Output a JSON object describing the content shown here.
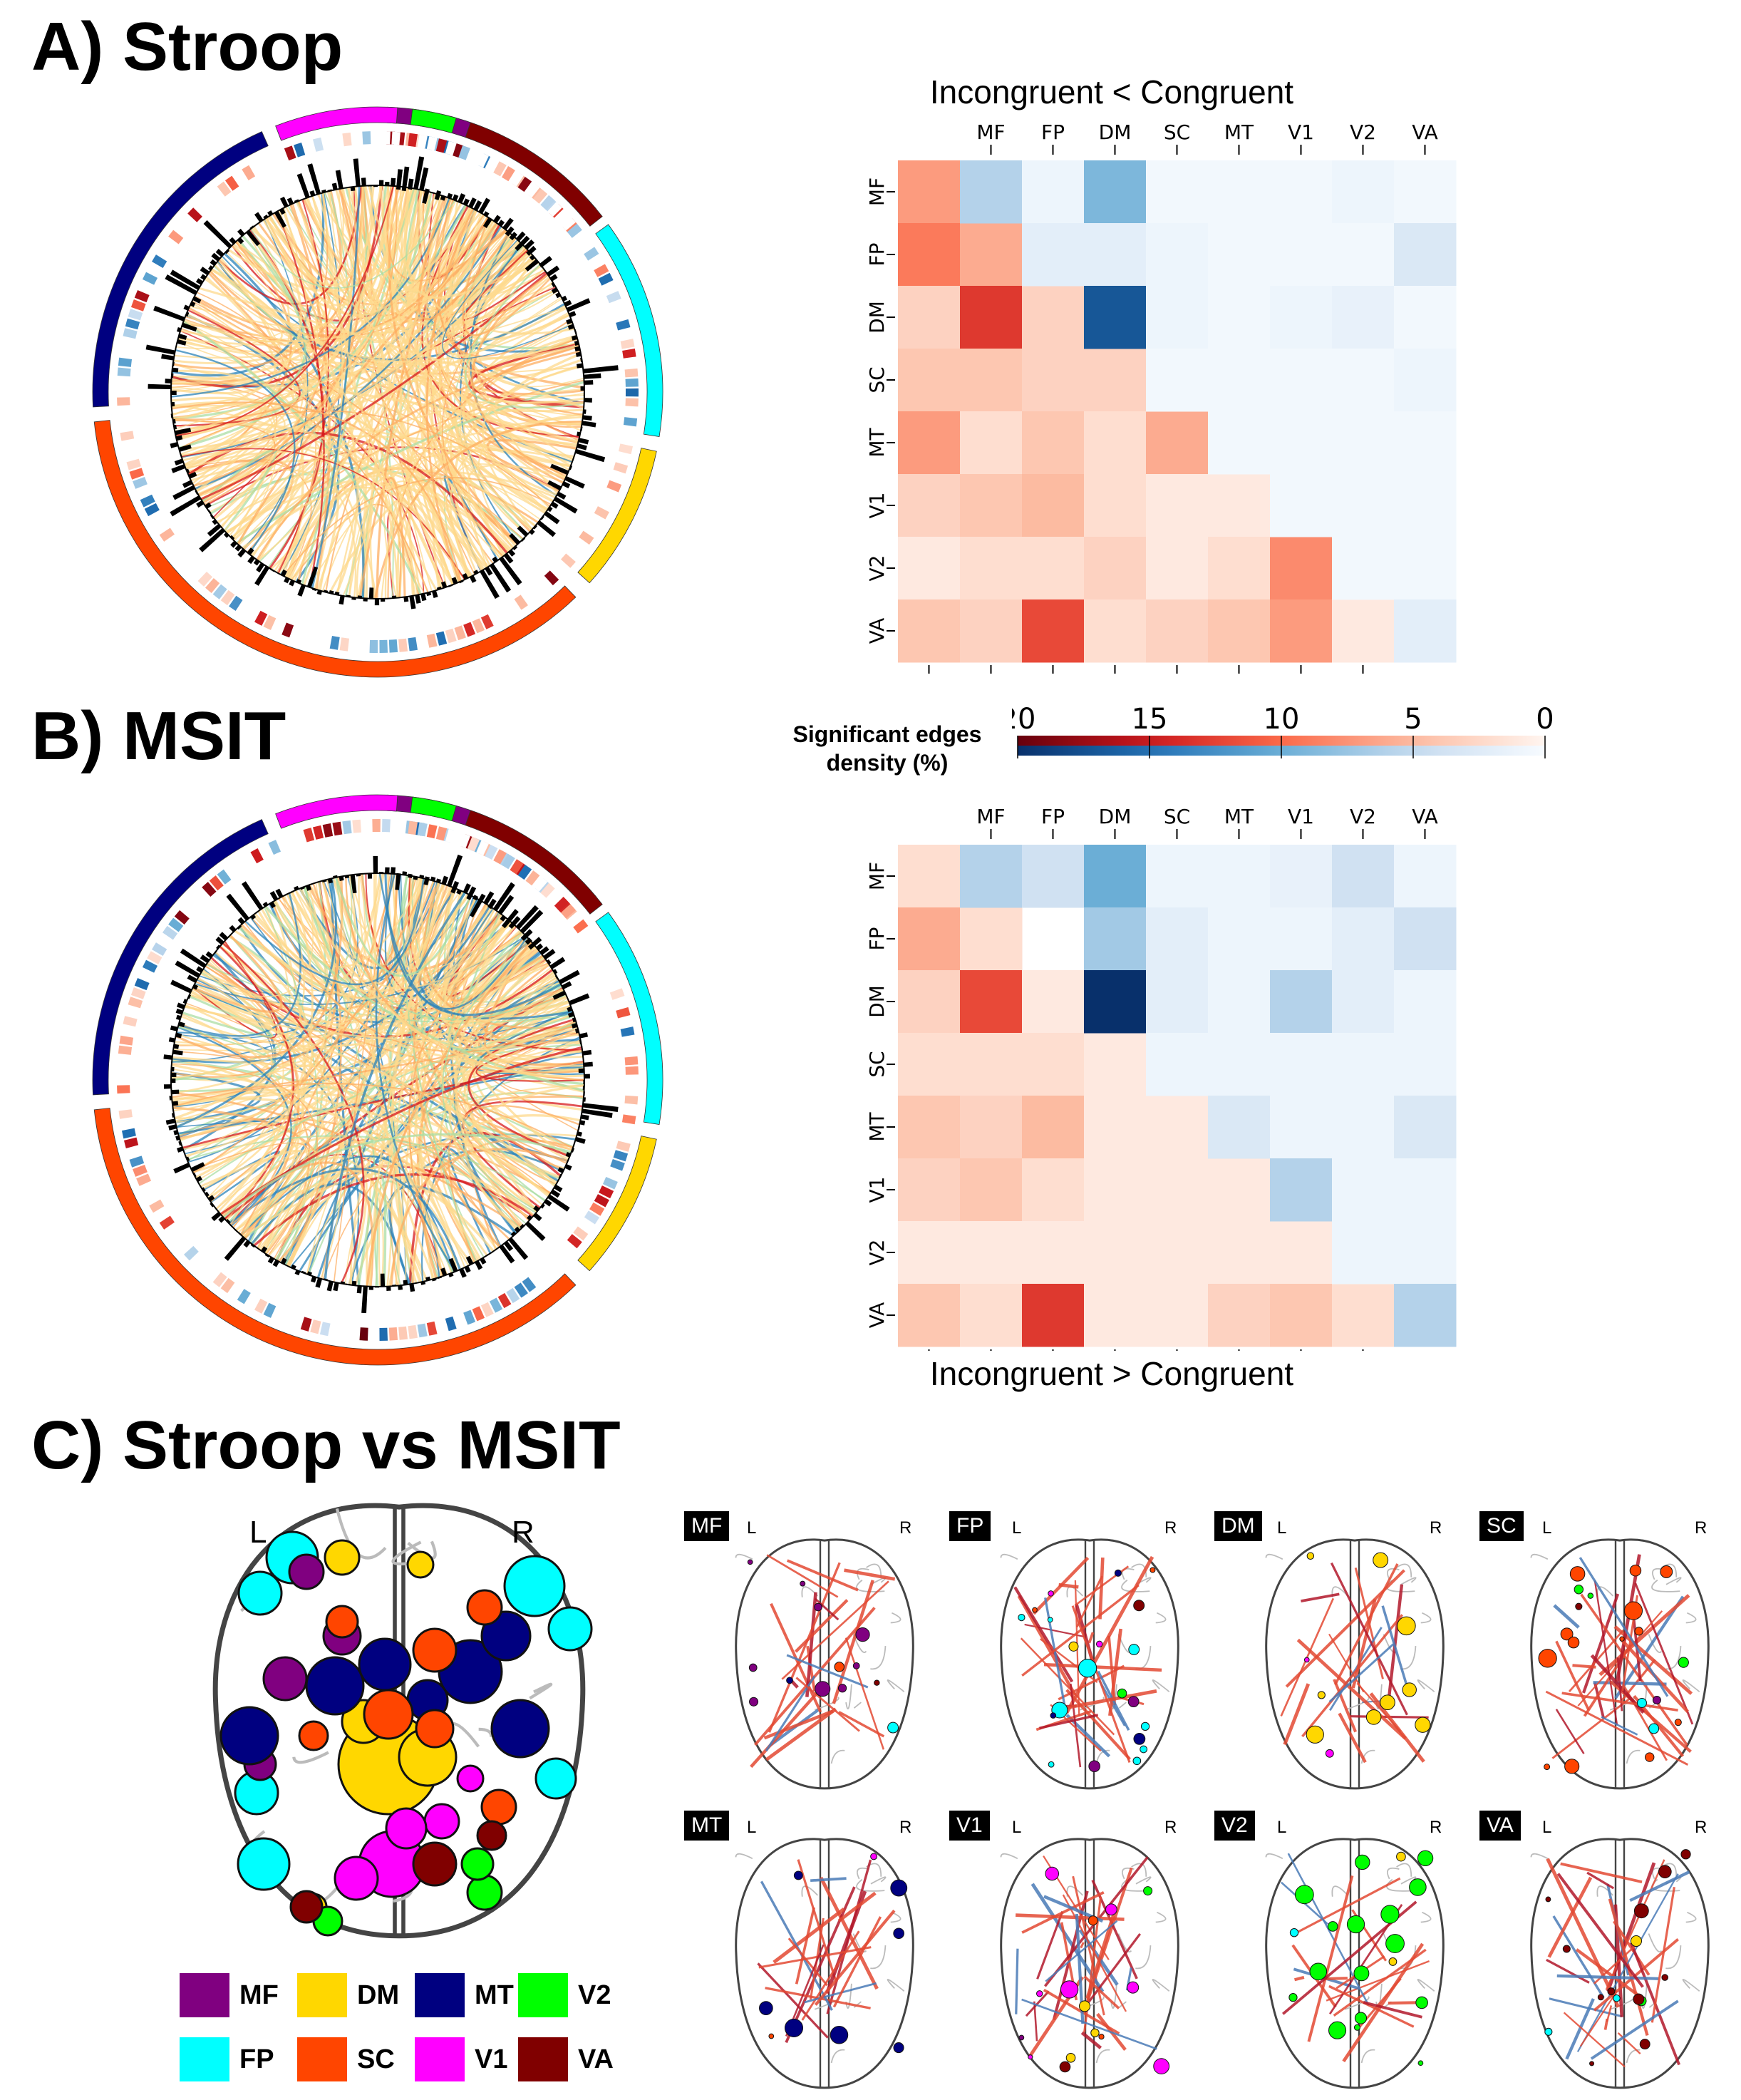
{
  "panels": {
    "a": "A) Stroop",
    "b": "B) MSIT",
    "c": "C) Stroop vs MSIT"
  },
  "heatmap_titles": {
    "top": "Incongruent < Congruent",
    "bottom": "Incongruent > Congruent"
  },
  "colorbar": {
    "label_line1": "Significant edges",
    "label_line2": "density (%)",
    "ticks": [
      "20",
      "15",
      "10",
      "5",
      "0"
    ]
  },
  "networks": [
    "MF",
    "FP",
    "DM",
    "SC",
    "MT",
    "V1",
    "V2",
    "VA"
  ],
  "network_colors": {
    "MF": "#800080",
    "FP": "#00ffff",
    "DM": "#ffd700",
    "SC": "#ff4500",
    "MT": "#000080",
    "V1": "#ff00ff",
    "V2": "#00ff00",
    "VA": "#800000"
  },
  "brain_side_labels": {
    "left": "L",
    "right": "R"
  },
  "chart_data": [
    {
      "type": "heatmap",
      "name": "Stroop",
      "categories": [
        "MF",
        "FP",
        "DM",
        "SC",
        "MT",
        "V1",
        "V2",
        "VA"
      ],
      "lower_red": [
        [
          7
        ],
        [
          9,
          6
        ],
        [
          3,
          13,
          3
        ],
        [
          4,
          4,
          3,
          3
        ],
        [
          7,
          2,
          4,
          2,
          6
        ],
        [
          3,
          4,
          5,
          2,
          1,
          1
        ],
        [
          1,
          2,
          2,
          3,
          1,
          2,
          8
        ],
        [
          4,
          3,
          12,
          2,
          3,
          4,
          7,
          1
        ]
      ],
      "upper_blue": [
        [
          null,
          null,
          null,
          6,
          1,
          9,
          0.5,
          0.5,
          0.5,
          1,
          0.5
        ],
        [
          null,
          null,
          null,
          2,
          2,
          1,
          0.5,
          0.5,
          0.5,
          3
        ],
        [
          null,
          null,
          null,
          null,
          17,
          1,
          0.5,
          1,
          1.5,
          0.5
        ],
        [
          null,
          null,
          null,
          null,
          null,
          0.5,
          0.5,
          0.5,
          0.5,
          1
        ],
        [
          null,
          null,
          null,
          null,
          null,
          null,
          0.5,
          0.5,
          0.5,
          0.5
        ],
        [
          null,
          null,
          null,
          null,
          null,
          null,
          null,
          0.5,
          0.5,
          0.5
        ],
        [
          null,
          null,
          null,
          null,
          null,
          null,
          null,
          null,
          0.5,
          0.5
        ],
        [
          null,
          null,
          null,
          null,
          null,
          null,
          null,
          null,
          null,
          2
        ]
      ],
      "range": [
        0,
        20
      ]
    },
    {
      "type": "heatmap",
      "name": "MSIT",
      "categories": [
        "MF",
        "FP",
        "DM",
        "SC",
        "MT",
        "V1",
        "V2",
        "VA"
      ],
      "lower_red": [
        [
          2
        ],
        [
          6,
          2
        ],
        [
          3,
          12,
          1
        ],
        [
          2,
          2,
          2,
          1
        ],
        [
          4,
          3,
          5,
          1,
          1
        ],
        [
          3,
          4,
          2,
          1,
          1,
          1
        ],
        [
          1,
          1,
          1,
          1,
          1,
          1,
          1
        ],
        [
          4,
          2,
          13,
          1,
          1,
          3,
          4,
          2
        ]
      ],
      "upper_blue": [
        [
          6,
          4,
          10,
          1,
          1,
          1.5,
          4,
          1
        ],
        [
          7,
          2,
          1,
          1,
          2,
          4
        ],
        [
          20,
          2,
          1,
          6,
          2,
          1
        ],
        [
          1,
          1,
          1,
          1,
          1
        ],
        [
          3,
          1,
          1,
          3
        ],
        [
          6,
          1,
          1
        ],
        [
          1,
          1
        ],
        [
          6
        ]
      ],
      "range": [
        0,
        20
      ]
    }
  ]
}
